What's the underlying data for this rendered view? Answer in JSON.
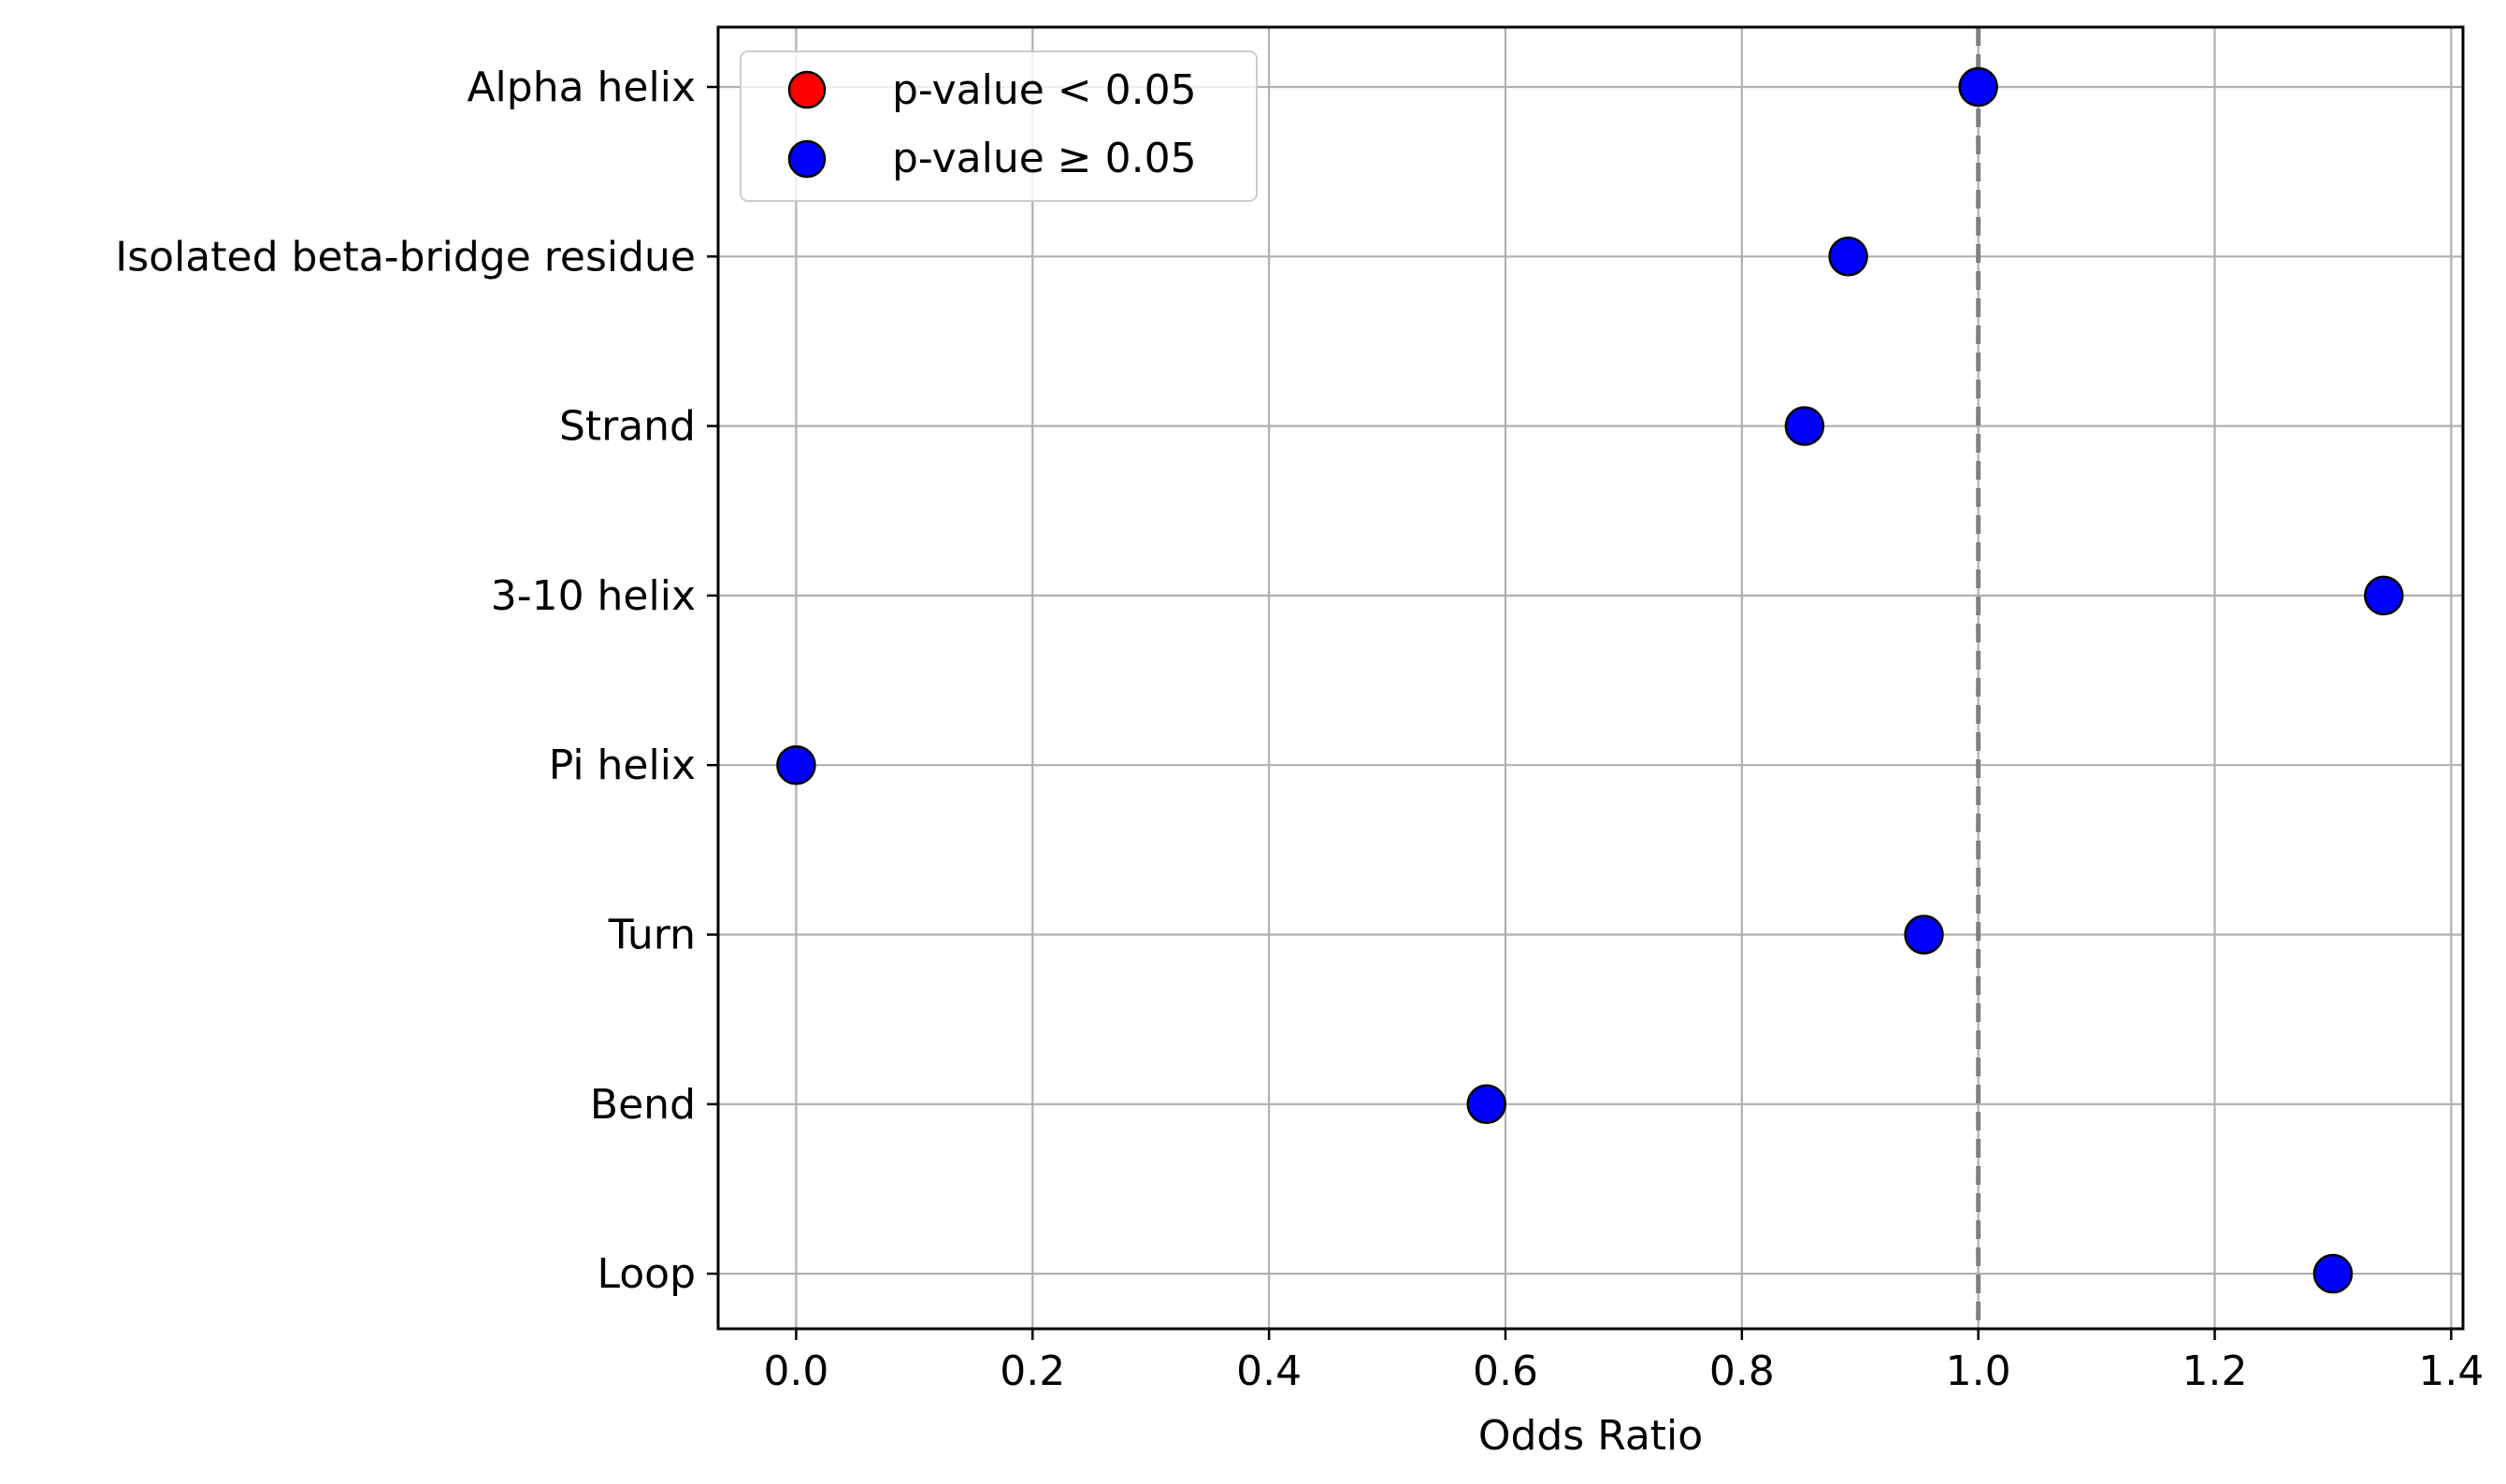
{
  "chart_data": {
    "type": "scatter",
    "title": "",
    "xlabel": "Odds Ratio",
    "ylabel": "",
    "xlim": [
      -0.066,
      1.41
    ],
    "xticks": [
      "0.0",
      "0.2",
      "0.4",
      "0.6",
      "0.8",
      "1.0",
      "1.2",
      "1.4"
    ],
    "xtick_values": [
      0.0,
      0.2,
      0.4,
      0.6,
      0.8,
      1.0,
      1.2,
      1.4
    ],
    "reference_line_x": 1.0,
    "grid": true,
    "legend_position": "upper left",
    "categories": [
      "Alpha helix",
      "Isolated beta-bridge residue",
      "Strand",
      "3-10 helix",
      "Pi helix",
      "Turn",
      "Bend",
      "Loop"
    ],
    "values": [
      1.0,
      0.89,
      0.853,
      1.343,
      0.0,
      0.954,
      0.584,
      1.3
    ],
    "significant": [
      false,
      false,
      false,
      false,
      false,
      false,
      false,
      false
    ],
    "legend": [
      {
        "label": "p-value < 0.05",
        "color": "#ff0000"
      },
      {
        "label": "p-value ≥ 0.05",
        "color": "#0000ff"
      }
    ],
    "colors": {
      "significant": "#ff0000",
      "not_significant": "#0000ff",
      "reference_line": "#808080",
      "grid": "#b0b0b0"
    }
  }
}
